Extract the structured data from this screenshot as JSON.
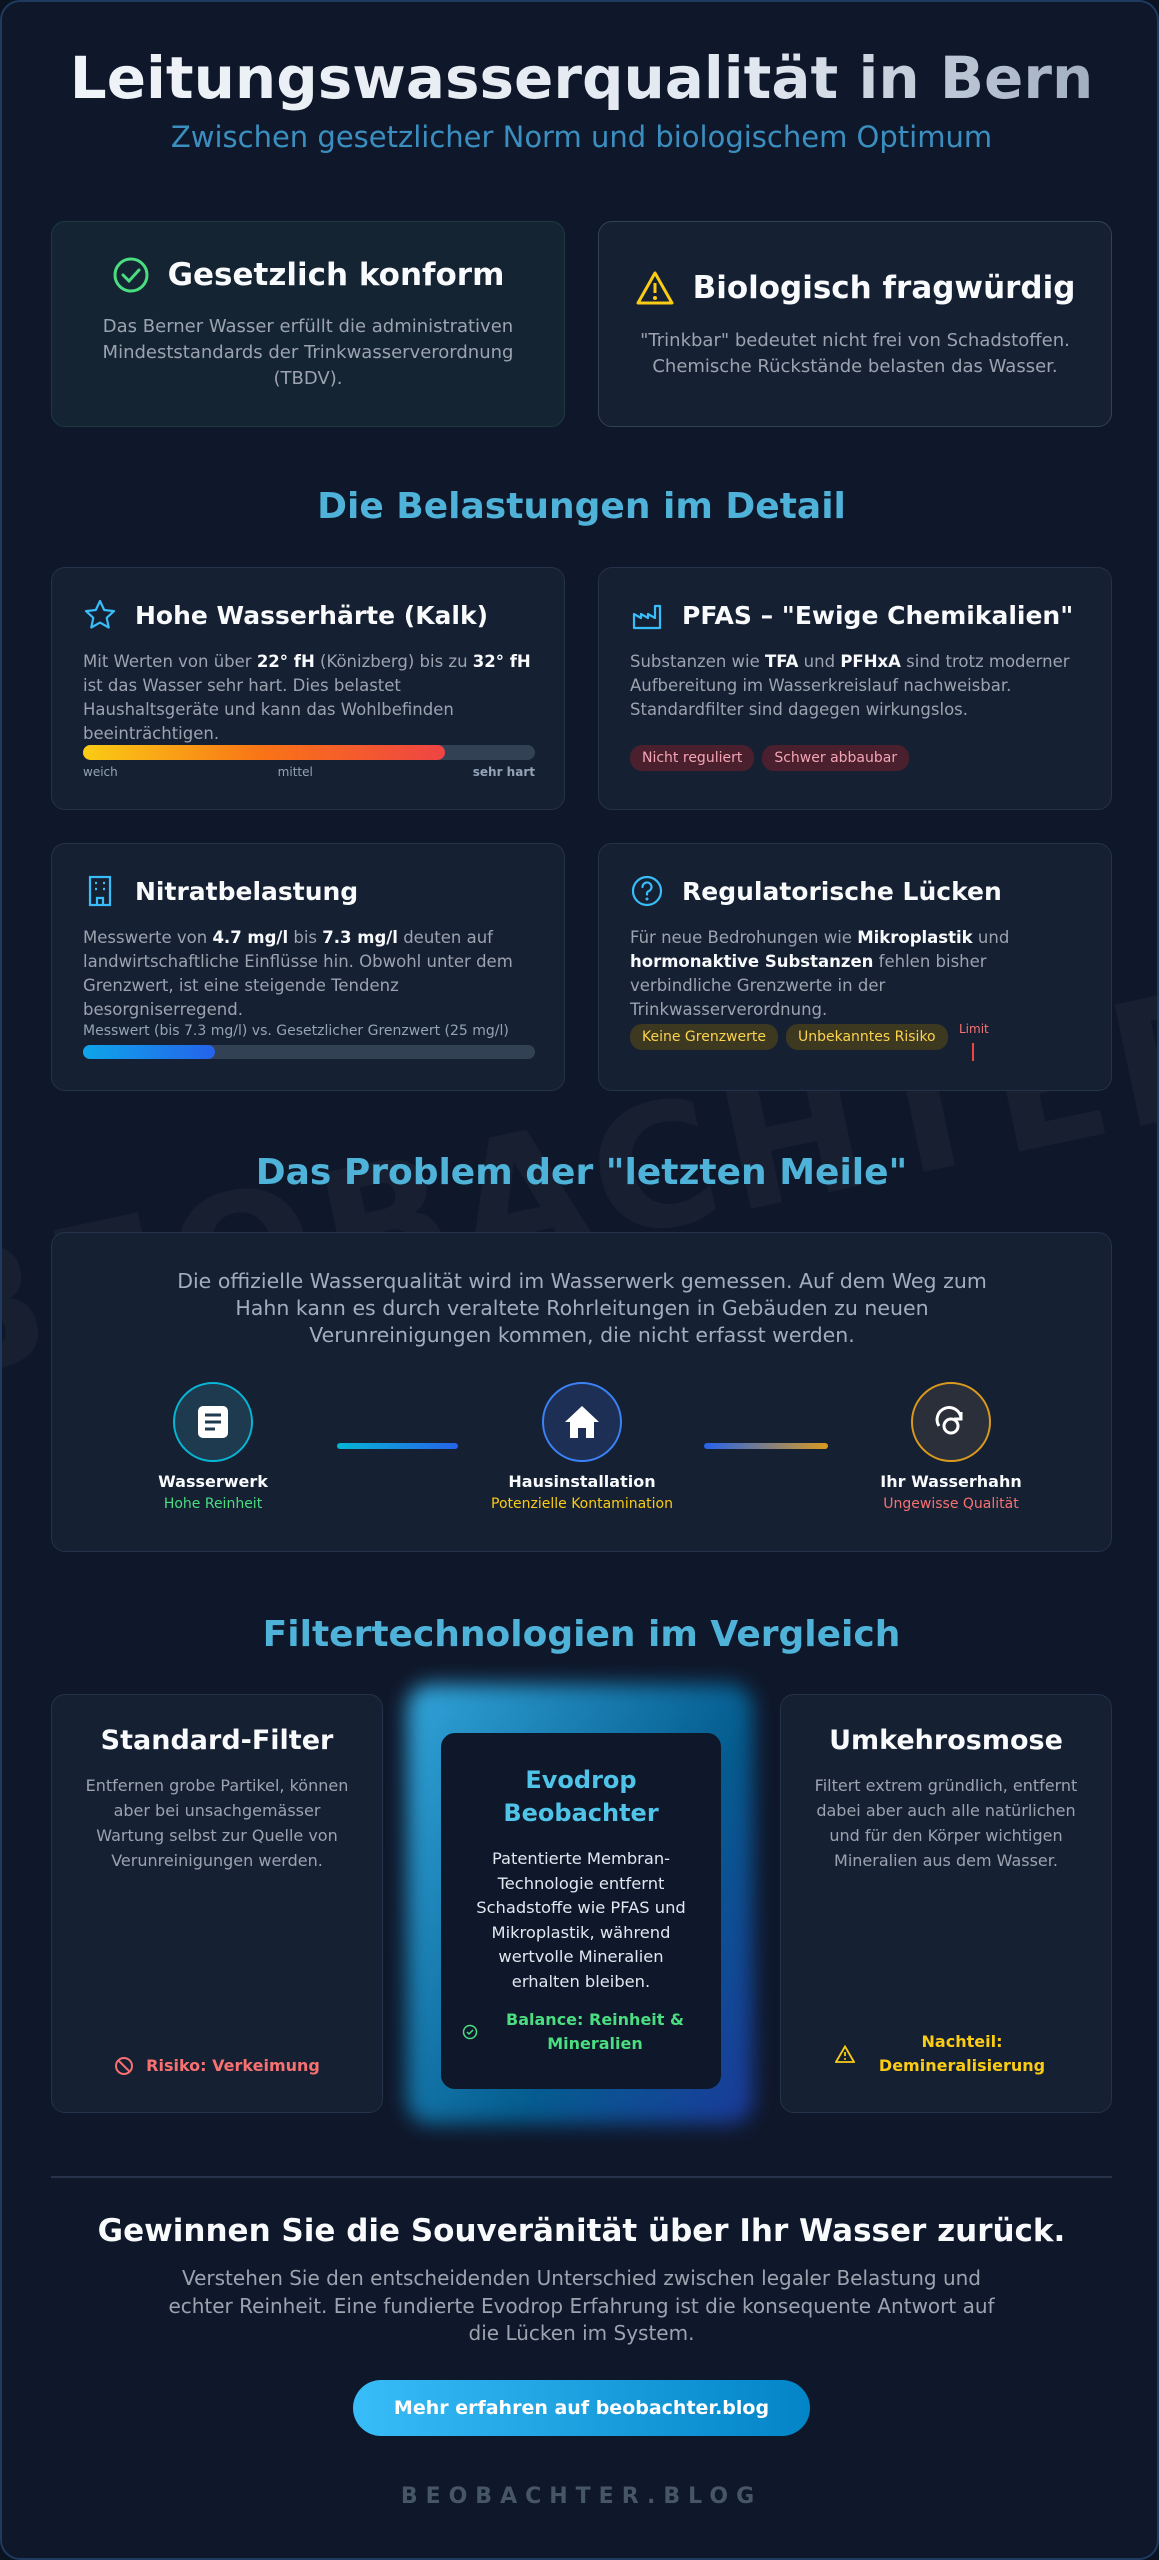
{
  "header": {
    "title": "Leitungswasserqualität in Bern",
    "subtitle": "Zwischen gesetzlicher Norm und biologischem Optimum"
  },
  "status_cards": [
    {
      "title": "Gesetzlich konform",
      "text": "Das Berner Wasser erfüllt die administrativen Mindeststandards der Trinkwasserverordnung (TBDV)."
    },
    {
      "title": "Biologisch fragwürdig",
      "text": "\"Trinkbar\" bedeutet nicht frei von Schadstoffen. Chemische Rückstände belasten das Wasser."
    }
  ],
  "details": {
    "heading": "Die Belastungen im Detail",
    "hardness": {
      "title": "Hohe Wasserhärte (Kalk)",
      "text": [
        "Mit Werten von über ",
        "22° fH",
        " (Könizberg) bis zu ",
        "32° fH",
        " ist das Wasser sehr hart. Dies belastet Haushaltsgeräte und kann das Wohlbefinden beeinträchtigen."
      ],
      "scale": [
        "weich",
        "mittel",
        "sehr hart"
      ]
    },
    "pfas": {
      "title": "PFAS – \"Ewige Chemikalien\"",
      "text": [
        "Substanzen wie ",
        "TFA",
        " und ",
        "PFHxA",
        " sind trotz moderner Aufbereitung im Wasserkreislauf nachweisbar. Standardfilter sind dagegen wirkungslos."
      ],
      "tags": [
        "Nicht reguliert",
        "Schwer abbaubar"
      ]
    },
    "nitrate": {
      "title": "Nitratbelastung",
      "text": [
        "Messwerte von ",
        "4.7 mg/l",
        " bis ",
        "7.3 mg/l",
        " deuten auf landwirtschaftliche Einflüsse hin. Obwohl unter dem Grenzwert, ist eine steigende Tendenz besorgniserregend."
      ],
      "bar_label": "Messwert (bis 7.3 mg/l) vs. Gesetzlicher Grenzwert (25 mg/l)",
      "value": 7.3,
      "max": 25
    },
    "regulation": {
      "title": "Regulatorische Lücken",
      "text": [
        "Für neue Bedrohungen wie ",
        "Mikroplastik",
        " und ",
        "hormonaktive Substanzen",
        " fehlen bisher verbindliche Grenzwerte in der Trinkwasserverordnung."
      ],
      "tags": [
        "Keine Grenzwerte",
        "Unbekanntes Risiko"
      ],
      "limit_label": "Limit"
    }
  },
  "last_mile": {
    "heading": "Das Problem der \"letzten Meile\"",
    "text": "Die offizielle Wasserqualität wird im Wasserwerk gemessen. Auf dem Weg zum Hahn kann es durch veraltete Rohrleitungen in Gebäuden zu neuen Verunreinigungen kommen, die nicht erfasst werden.",
    "nodes": [
      {
        "label": "Wasserwerk",
        "sub": "Hohe Reinheit"
      },
      {
        "label": "Hausinstallation",
        "sub": "Potenzielle Kontamination"
      },
      {
        "label": "Ihr Wasserhahn",
        "sub": "Ungewisse Qualität"
      }
    ]
  },
  "filters": {
    "heading": "Filtertechnologien im Vergleich",
    "cards": [
      {
        "title": "Standard-Filter",
        "text": "Entfernen grobe Partikel, können aber bei unsachgemässer Wartung selbst zur Quelle von Verunreinigungen werden.",
        "note": "Risiko: Verkeimung"
      },
      {
        "title": "Evodrop Beobachter",
        "text": "Patentierte Membran-Technologie entfernt Schadstoffe wie PFAS und Mikroplastik, während wertvolle Mineralien erhalten bleiben.",
        "note": "Balance: Reinheit & Mineralien"
      },
      {
        "title": "Umkehrosmose",
        "text": "Filtert extrem gründlich, entfernt dabei aber auch alle natürlichen und für den Körper wichtigen Mineralien aus dem Wasser.",
        "note": "Nachteil: Demineralisierung"
      }
    ]
  },
  "cta": {
    "title": "Gewinnen Sie die Souveränität über Ihr Wasser zurück.",
    "text": "Verstehen Sie den entscheidenden Unterschied zwischen legaler Belastung und echter Reinheit. Eine fundierte Evodrop Erfahrung ist die konsequente Antwort auf die Lücken im System.",
    "button": "Mehr erfahren auf beobachter.blog"
  },
  "footer": "BEOBACHTER.BLOG",
  "watermark": "BEOBACHTER.BLOG"
}
